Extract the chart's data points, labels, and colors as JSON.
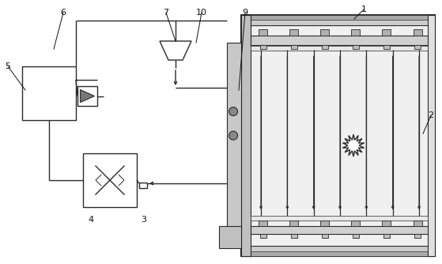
{
  "bg_color": "#ffffff",
  "line_color": "#2a2a2a",
  "gray_dark": "#555555",
  "gray_mid": "#888888",
  "gray_light": "#bbbbbb",
  "gray_fill": "#d8d8d8",
  "label_fontsize": 8,
  "fig_width": 5.59,
  "fig_height": 3.34,
  "dpi": 100
}
